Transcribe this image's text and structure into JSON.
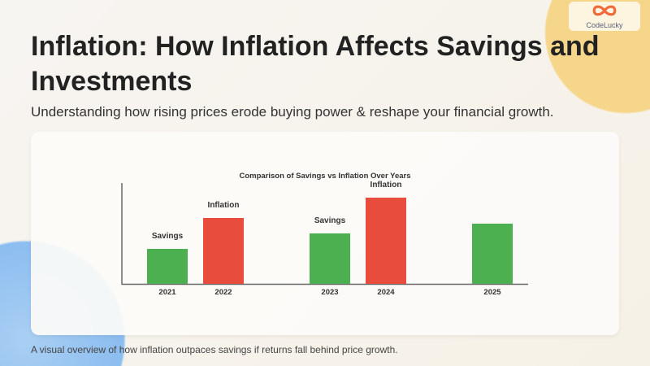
{
  "logo": {
    "text": "CodeLucky"
  },
  "header": {
    "title": "Inflation: How Inflation Affects Savings and Investments",
    "subtitle": "Understanding how rising prices erode buying power & reshape your financial growth."
  },
  "caption": "A visual overview of how inflation outpaces savings if returns fall behind price growth.",
  "chart_data": {
    "type": "bar",
    "title": "Comparison of Savings vs Inflation Over Years",
    "categories": [
      "2021",
      "2022",
      "2023",
      "2024",
      "2025"
    ],
    "values": [
      43,
      81,
      62,
      106,
      74
    ],
    "bar_labels": [
      "Savings",
      "Inflation",
      "Savings",
      "Inflation",
      ""
    ],
    "colors": [
      "#4caf50",
      "#e74c3c",
      "#4caf50",
      "#e74c3c",
      "#4caf50"
    ],
    "grid": false,
    "y_ticks_shown": false
  }
}
